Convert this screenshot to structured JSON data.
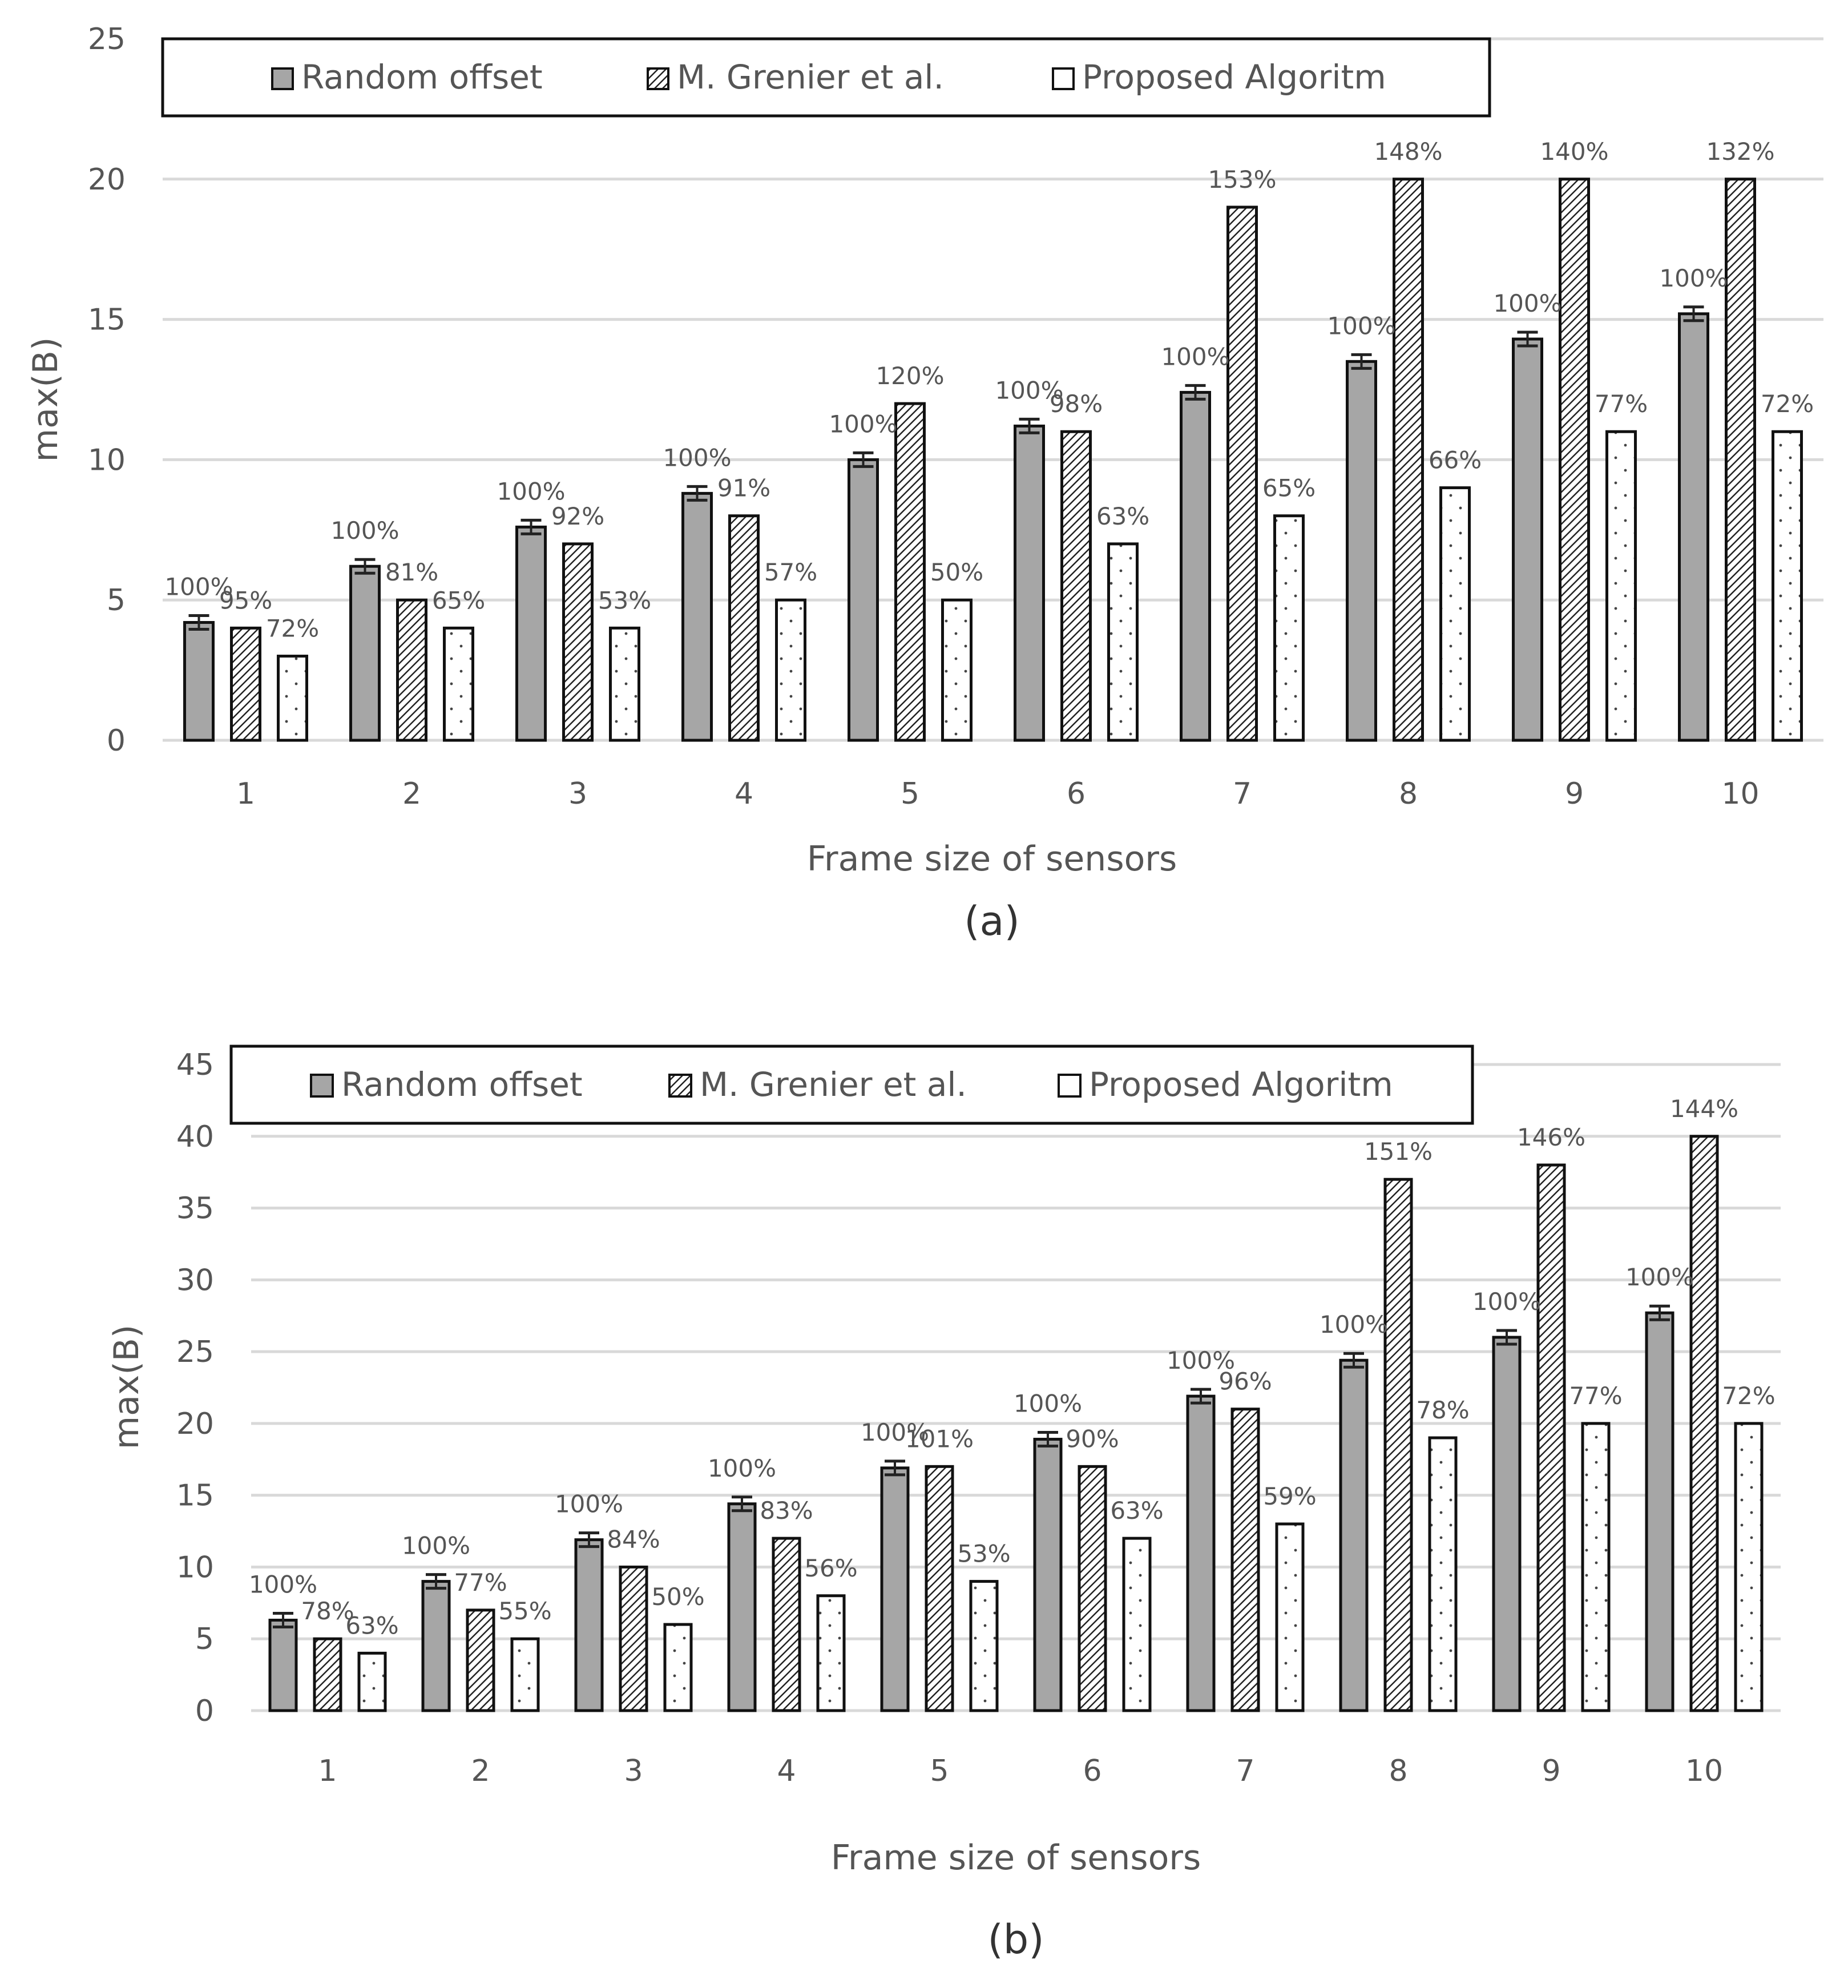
{
  "chart_data": [
    {
      "type": "bar",
      "caption": "(a)",
      "xlabel": "Frame size of sensors",
      "ylabel": "max(B)",
      "ylim": [
        0,
        25
      ],
      "yticks": [
        "0",
        "5",
        "10",
        "15",
        "20",
        "25"
      ],
      "categories": [
        "1",
        "2",
        "3",
        "4",
        "5",
        "6",
        "7",
        "8",
        "9",
        "10"
      ],
      "legend": {
        "placement": "top"
      },
      "series": [
        {
          "name": "Random offset",
          "pattern": "solid-gray",
          "error_bars": true,
          "values": [
            4.2,
            6.2,
            7.6,
            8.8,
            10.0,
            11.2,
            12.4,
            13.5,
            14.3,
            15.2
          ],
          "labels": [
            "100%",
            "100%",
            "100%",
            "100%",
            "100%",
            "100%",
            "100%",
            "100%",
            "100%",
            "100%"
          ]
        },
        {
          "name": "M. Grenier et al.",
          "pattern": "diagonal-hatch",
          "values": [
            4,
            5,
            7,
            8,
            12,
            11,
            19,
            20,
            20,
            20
          ],
          "labels": [
            "95%",
            "81%",
            "92%",
            "91%",
            "120%",
            "98%",
            "153%",
            "148%",
            "140%",
            "132%"
          ]
        },
        {
          "name": "Proposed Algoritm",
          "pattern": "dotted-white",
          "values": [
            3,
            4,
            4,
            5,
            5,
            7,
            8,
            9,
            11,
            11
          ],
          "labels": [
            "72%",
            "65%",
            "53%",
            "57%",
            "50%",
            "63%",
            "65%",
            "66%",
            "77%",
            "72%"
          ]
        }
      ]
    },
    {
      "type": "bar",
      "caption": "(b)",
      "xlabel": "Frame size of sensors",
      "ylabel": "max(B)",
      "ylim": [
        0,
        45
      ],
      "yticks": [
        "0",
        "5",
        "10",
        "15",
        "20",
        "25",
        "30",
        "35",
        "40",
        "45"
      ],
      "categories": [
        "1",
        "2",
        "3",
        "4",
        "5",
        "6",
        "7",
        "8",
        "9",
        "10"
      ],
      "legend": {
        "placement": "top"
      },
      "series": [
        {
          "name": "Random offset",
          "pattern": "solid-gray",
          "error_bars": true,
          "values": [
            6.3,
            9.0,
            11.9,
            14.4,
            16.9,
            18.9,
            21.9,
            24.4,
            26.0,
            27.7
          ],
          "labels": [
            "100%",
            "100%",
            "100%",
            "100%",
            "100%",
            "100%",
            "100%",
            "100%",
            "100%",
            "100%"
          ]
        },
        {
          "name": "M. Grenier et al.",
          "pattern": "diagonal-hatch",
          "values": [
            5,
            7,
            10,
            12,
            17,
            17,
            21,
            37,
            38,
            40
          ],
          "labels": [
            "78%",
            "77%",
            "84%",
            "83%",
            "101%",
            "90%",
            "96%",
            "151%",
            "146%",
            "144%"
          ]
        },
        {
          "name": "Proposed Algoritm",
          "pattern": "dotted-white",
          "values": [
            4,
            5,
            6,
            8,
            9,
            12,
            13,
            19,
            20,
            20
          ],
          "labels": [
            "63%",
            "55%",
            "50%",
            "56%",
            "53%",
            "63%",
            "59%",
            "78%",
            "77%",
            "72%"
          ]
        }
      ]
    }
  ]
}
